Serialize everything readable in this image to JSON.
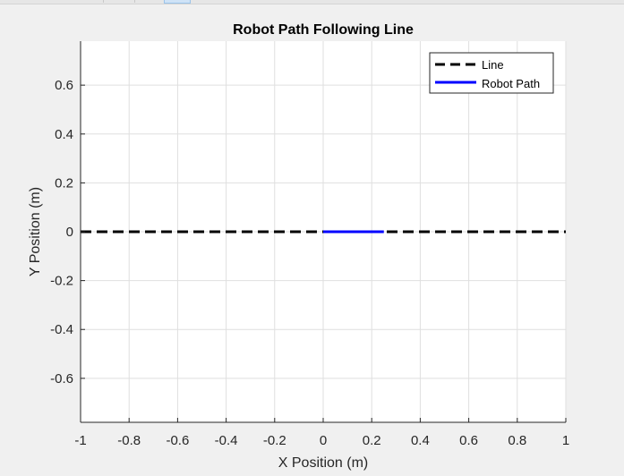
{
  "chart_data": {
    "type": "line",
    "title": "Robot Path Following Line",
    "xlabel": "X Position (m)",
    "ylabel": "Y Position (m)",
    "xlim": [
      -1,
      1
    ],
    "ylim": [
      -0.78,
      0.78
    ],
    "xticks": [
      -1,
      -0.8,
      -0.6,
      -0.4,
      -0.2,
      0,
      0.2,
      0.4,
      0.6,
      0.8,
      1
    ],
    "xtick_labels": [
      "-1",
      "-0.8",
      "-0.6",
      "-0.4",
      "-0.2",
      "0",
      "0.2",
      "0.4",
      "0.6",
      "0.8",
      "1"
    ],
    "yticks": [
      0.6,
      0.4,
      0.2,
      0,
      -0.2,
      -0.4,
      -0.6
    ],
    "ytick_labels": [
      "0.6",
      "0.4",
      "0.2",
      "0",
      "-0.2",
      "-0.4",
      "-0.6"
    ],
    "grid": true,
    "legend_position": "top-right",
    "series": [
      {
        "name": "Line",
        "style": "dashed",
        "color": "#000000",
        "x": [
          -1,
          1
        ],
        "y": [
          0,
          0
        ]
      },
      {
        "name": "Robot Path",
        "style": "solid",
        "color": "#0000ff",
        "x": [
          0,
          0.25
        ],
        "y": [
          0,
          0
        ]
      }
    ]
  },
  "colors": {
    "figure_background": "#f0f0f0",
    "axes_background": "#ffffff",
    "grid": "#dfdfdf",
    "axis": "#262626"
  }
}
